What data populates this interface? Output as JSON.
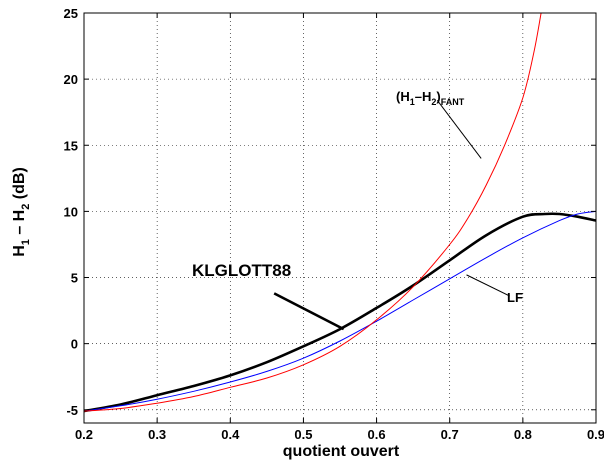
{
  "chart_data": {
    "type": "line",
    "xlabel": "quotient ouvert",
    "ylabel": "H₁ – H₂ (dB)",
    "xlim": [
      0.2,
      0.9
    ],
    "ylim": [
      -6,
      25
    ],
    "xticks": [
      "0.2",
      "0.3",
      "0.4",
      "0.5",
      "0.6",
      "0.7",
      "0.8",
      "0.9"
    ],
    "yticks": [
      "-5",
      "0",
      "5",
      "10",
      "15",
      "20",
      "25"
    ],
    "grid": true,
    "series": [
      {
        "name": "KLGLOTT88",
        "color": "#000000",
        "x": [
          0.2,
          0.25,
          0.3,
          0.35,
          0.4,
          0.45,
          0.5,
          0.55,
          0.6,
          0.65,
          0.7,
          0.75,
          0.8,
          0.83,
          0.85,
          0.875,
          0.9
        ],
        "y": [
          -5.1,
          -4.6,
          -3.9,
          -3.2,
          -2.4,
          -1.4,
          -0.2,
          1.1,
          2.7,
          4.4,
          6.3,
          8.2,
          9.6,
          9.8,
          9.8,
          9.6,
          9.3
        ]
      },
      {
        "name": "LF",
        "color": "#0000ff",
        "x": [
          0.2,
          0.25,
          0.3,
          0.35,
          0.4,
          0.45,
          0.5,
          0.55,
          0.6,
          0.65,
          0.7,
          0.75,
          0.8,
          0.85,
          0.875,
          0.9
        ],
        "y": [
          -5.1,
          -4.7,
          -4.2,
          -3.6,
          -2.9,
          -2.1,
          -1.1,
          0.2,
          1.7,
          3.3,
          4.9,
          6.5,
          8.0,
          9.3,
          9.8,
          10.0
        ]
      },
      {
        "name": "(H₁–H₂)FANT",
        "color": "#ff0000",
        "x": [
          0.2,
          0.25,
          0.3,
          0.35,
          0.4,
          0.45,
          0.5,
          0.55,
          0.6,
          0.65,
          0.7,
          0.725,
          0.75,
          0.775,
          0.8,
          0.815,
          0.825
        ],
        "y": [
          -5.1,
          -4.9,
          -4.5,
          -4.0,
          -3.3,
          -2.6,
          -1.6,
          -0.2,
          1.8,
          4.3,
          7.5,
          9.5,
          12.0,
          15.0,
          18.6,
          22.0,
          25.0
        ]
      }
    ],
    "annotations": [
      {
        "text": "KLGLOTT88",
        "series": 0
      },
      {
        "text": "LF",
        "series": 1
      },
      {
        "text": "(H₁–H₂)FANT",
        "series": 2
      }
    ]
  }
}
